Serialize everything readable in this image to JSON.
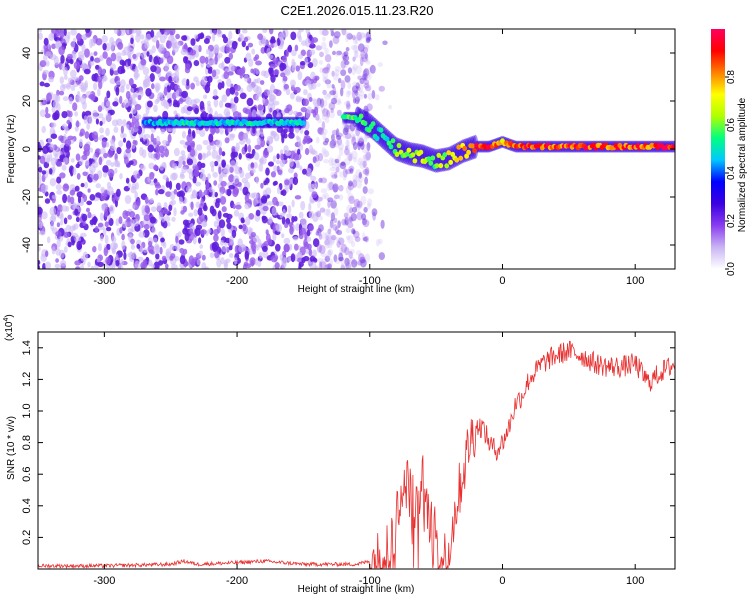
{
  "figure_title": "C2E1.2026.015.11.23.R20",
  "chart_data": [
    {
      "type": "heatmap",
      "xlabel": "Height of straight line (km)",
      "ylabel": "Frequency (Hz)",
      "xlim": [
        -350,
        130
      ],
      "ylim": [
        -50,
        50
      ],
      "xticks": [
        -300,
        -200,
        -100,
        0,
        100
      ],
      "yticks": [
        -40,
        -20,
        0,
        20,
        40
      ],
      "colorbar": {
        "label": "Normalized spectral amplitude",
        "range": [
          0.0,
          1.0
        ],
        "ticks": [
          "0.0",
          "0.2",
          "0.4",
          "0.6",
          "0.8"
        ],
        "tick_values": [
          0.0,
          0.2,
          0.4,
          0.6,
          0.8
        ],
        "colormap": [
          "#ffffff",
          "#c9b4f4",
          "#8a3df0",
          "#3b00e0",
          "#0000ff",
          "#00c8ff",
          "#00ff80",
          "#b0ff00",
          "#ffff00",
          "#ff8000",
          "#ff0000",
          "#ff0060"
        ]
      },
      "noise_region_x": [
        -350,
        -100
      ],
      "dominant_frequency_ridge": {
        "x": [
          -270,
          -240,
          -200,
          -160,
          -150,
          -120,
          -110,
          -100,
          -90,
          -80,
          -70,
          -60,
          -50,
          -40,
          -30,
          -20,
          -10,
          0,
          10,
          50,
          100,
          130
        ],
        "y": [
          11,
          11,
          11,
          11,
          11,
          13,
          13,
          10,
          5,
          0,
          -2,
          -3,
          -5,
          -4,
          -1,
          1,
          1,
          3,
          1,
          1,
          1,
          1
        ],
        "amplitude": [
          0.45,
          0.5,
          0.5,
          0.5,
          0.5,
          0.55,
          0.6,
          0.55,
          0.5,
          0.6,
          0.65,
          0.65,
          0.6,
          0.7,
          0.85,
          0.9,
          0.9,
          0.8,
          0.9,
          0.9,
          0.9,
          0.9
        ]
      }
    },
    {
      "type": "line",
      "xlabel": "Height of straight line (km)",
      "ylabel": "SNR (10 * v/v)",
      "y_scale_label": "(x10",
      "y_scale_exponent": "4",
      "y_scale_suffix": ")",
      "xlim": [
        -350,
        130
      ],
      "ylim": [
        0,
        1.5
      ],
      "xticks": [
        -300,
        -200,
        -100,
        0,
        100
      ],
      "yticks": [
        0.2,
        0.4,
        0.6,
        0.8,
        1.0,
        1.2,
        1.4
      ],
      "color": "#e83030",
      "series": [
        {
          "x": [
            -350,
            -300,
            -250,
            -240,
            -230,
            -200,
            -180,
            -150,
            -110,
            -95,
            -85,
            -80,
            -75,
            -70,
            -65,
            -60,
            -55,
            -50,
            -45,
            -40,
            -35,
            -30,
            -25,
            -20,
            -15,
            -10,
            -5,
            0,
            5,
            10,
            15,
            20,
            25,
            30,
            40,
            50,
            60,
            70,
            80,
            90,
            100,
            110,
            120,
            130
          ],
          "y": [
            0.02,
            0.02,
            0.03,
            0.05,
            0.03,
            0.04,
            0.05,
            0.03,
            0.03,
            0.06,
            0.15,
            0.3,
            0.6,
            0.5,
            0.4,
            0.55,
            0.3,
            0.2,
            0.05,
            0.15,
            0.4,
            0.6,
            0.8,
            0.9,
            0.9,
            0.8,
            0.75,
            0.8,
            0.9,
            1.05,
            1.1,
            1.2,
            1.25,
            1.3,
            1.35,
            1.38,
            1.35,
            1.3,
            1.28,
            1.28,
            1.3,
            1.18,
            1.25,
            1.3
          ]
        }
      ]
    }
  ]
}
